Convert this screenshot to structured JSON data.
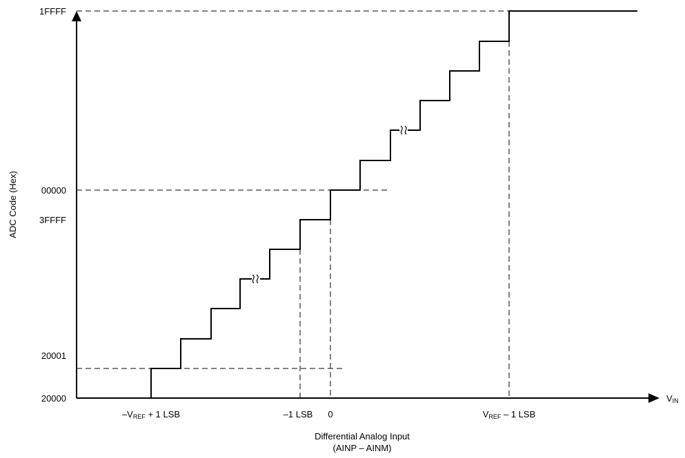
{
  "diagram": {
    "y_axis": {
      "title": "ADC Code (Hex)",
      "ticks": [
        "1FFFF",
        "00000",
        "3FFFF",
        "20001",
        "20000"
      ]
    },
    "x_axis": {
      "end_label_main": "V",
      "end_label_sub": "IN",
      "tick_neg_vref_prefix": "–V",
      "tick_neg_vref_sub": "REF",
      "tick_neg_vref_suffix": " + 1 LSB",
      "tick_neg_lsb": "–1 LSB",
      "tick_zero": "0",
      "tick_vref_prefix": "V",
      "tick_vref_sub": "REF",
      "tick_vref_suffix": " – 1 LSB",
      "title_line1": "Differential Analog Input",
      "title_line2": "(AINP – AINM)"
    },
    "break_marks": [
      "lower-break-mark",
      "upper-break-mark"
    ],
    "colors": {
      "line": "#000000",
      "background": "#ffffff"
    }
  }
}
